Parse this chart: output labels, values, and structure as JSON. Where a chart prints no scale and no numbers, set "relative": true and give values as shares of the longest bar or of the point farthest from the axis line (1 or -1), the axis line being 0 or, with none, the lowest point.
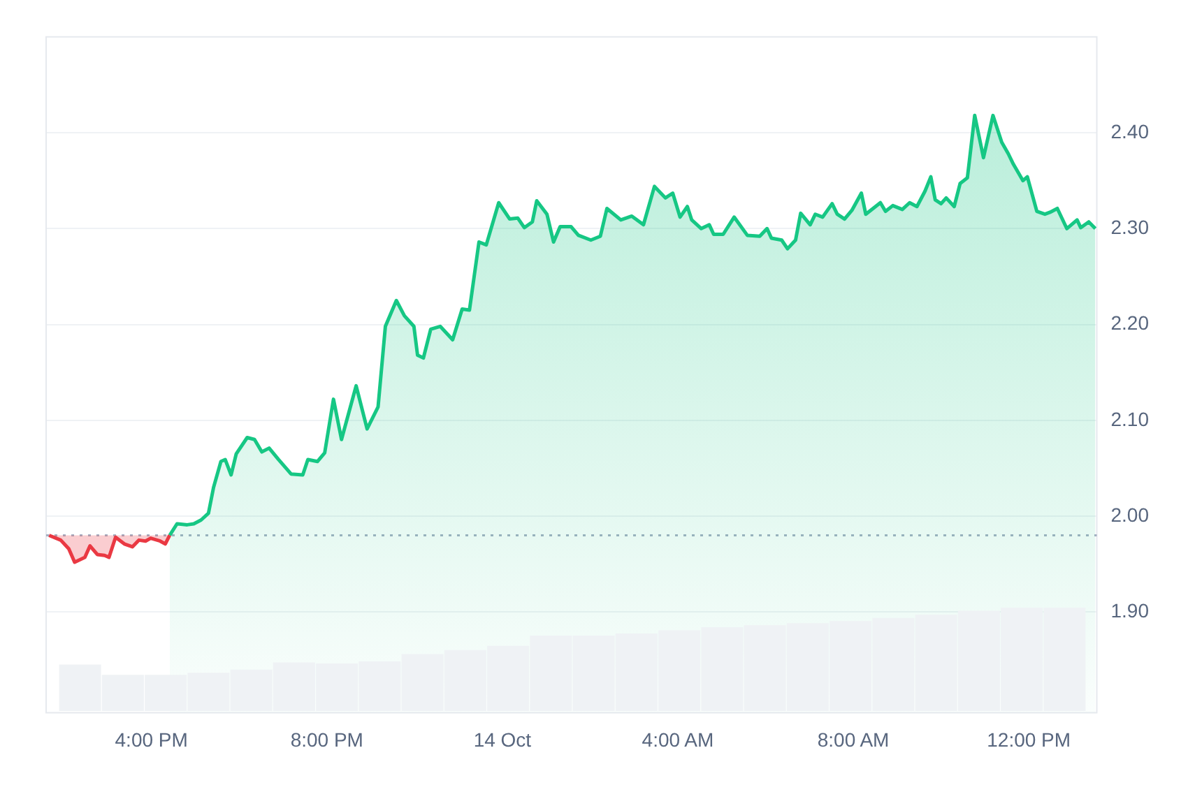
{
  "chart_data": [
    {
      "type": "area",
      "xlim": [
        "--10-13T13:36",
        "--10-14T13:33"
      ],
      "ylim": [
        1.795,
        2.5
      ],
      "xticks": [
        {
          "value": "--10-13T16:00",
          "label": "4:00 PM"
        },
        {
          "value": "--10-13T20:00",
          "label": "8:00 PM"
        },
        {
          "value": "--10-14T00:00",
          "label": "14 Oct"
        },
        {
          "value": "--10-14T04:00",
          "label": "4:00 AM"
        },
        {
          "value": "--10-14T08:00",
          "label": "8:00 AM"
        },
        {
          "value": "--10-14T12:00",
          "label": "12:00 PM"
        }
      ],
      "yticks": [
        {
          "value": 1.9,
          "label": "1.90"
        },
        {
          "value": 2.0,
          "label": "2.00"
        },
        {
          "value": 2.1,
          "label": "2.10"
        },
        {
          "value": 2.2,
          "label": "2.20"
        },
        {
          "value": 2.3,
          "label": "2.30"
        },
        {
          "value": 2.4,
          "label": "2.40"
        }
      ],
      "grid": "y",
      "marker": "none",
      "ref_lines": [
        {
          "axis": "y",
          "value": 1.98,
          "color": "#a6b0c3",
          "line_style": "dotted"
        }
      ],
      "series": [
        {
          "color": "#ea3943",
          "x": [
            "--10-13T13:40",
            "--10-13T13:56",
            "--10-13T14:07",
            "--10-13T14:15",
            "--10-13T14:29",
            "--10-13T14:36",
            "--10-13T14:46",
            "--10-13T14:56",
            "--10-13T15:02",
            "--10-13T15:11",
            "--10-13T15:23",
            "--10-13T15:34",
            "--10-13T15:43",
            "--10-13T15:52",
            "--10-13T15:59",
            "--10-13T16:12",
            "--10-13T16:19",
            "--10-13T16:25"
          ],
          "values": [
            1.98,
            1.975,
            1.966,
            1.952,
            1.957,
            1.969,
            1.96,
            1.959,
            1.957,
            1.978,
            1.971,
            1.968,
            1.975,
            1.974,
            1.977,
            1.974,
            1.971,
            1.98
          ]
        },
        {
          "color": "#16c784",
          "x": [
            "--10-13T16:25",
            "--10-13T16:35",
            "--10-13T16:49",
            "--10-13T16:58",
            "--10-13T17:08",
            "--10-13T17:18",
            "--10-13T17:25",
            "--10-13T17:35",
            "--10-13T17:41",
            "--10-13T17:49",
            "--10-13T17:56",
            "--10-13T18:11",
            "--10-13T18:21",
            "--10-13T18:31",
            "--10-13T18:41",
            "--10-13T18:54",
            "--10-13T19:11",
            "--10-13T19:27",
            "--10-13T19:34",
            "--10-13T19:47",
            "--10-13T19:57",
            "--10-13T20:09",
            "--10-13T20:20",
            "--10-13T20:40",
            "--10-13T20:55",
            "--10-13T21:10",
            "--10-13T21:20",
            "--10-13T21:35",
            "--10-13T21:46",
            "--10-13T21:59",
            "--10-13T22:04",
            "--10-13T22:12",
            "--10-13T22:22",
            "--10-13T22:35",
            "--10-13T22:52",
            "--10-13T23:05",
            "--10-13T23:15",
            "--10-13T23:28",
            "--10-13T23:38",
            "--10-13T23:55",
            "--10-14T00:10",
            "--10-14T00:21",
            "--10-14T00:30",
            "--10-14T00:41",
            "--10-14T00:47",
            "--10-14T01:01",
            "--10-14T01:10",
            "--10-14T01:19",
            "--10-14T01:34",
            "--10-14T01:44",
            "--10-14T02:01",
            "--10-14T02:14",
            "--10-14T02:23",
            "--10-14T02:42",
            "--10-14T02:57",
            "--10-14T03:13",
            "--10-14T03:28",
            "--10-14T03:43",
            "--10-14T03:53",
            "--10-14T04:03",
            "--10-14T04:13",
            "--10-14T04:19",
            "--10-14T04:32",
            "--10-14T04:43",
            "--10-14T04:49",
            "--10-14T05:02",
            "--10-14T05:17",
            "--10-14T05:35",
            "--10-14T05:52",
            "--10-14T06:02",
            "--10-14T06:08",
            "--10-14T06:22",
            "--10-14T06:30",
            "--10-14T06:41",
            "--10-14T06:48",
            "--10-14T07:01",
            "--10-14T07:08",
            "--10-14T07:18",
            "--10-14T07:31",
            "--10-14T07:38",
            "--10-14T07:48",
            "--10-14T07:58",
            "--10-14T08:11",
            "--10-14T08:17",
            "--10-14T08:37",
            "--10-14T08:44",
            "--10-14T08:54",
            "--10-14T09:07",
            "--10-14T09:17",
            "--10-14T09:27",
            "--10-14T09:38",
            "--10-14T09:46",
            "--10-14T09:52",
            "--10-14T10:00",
            "--10-14T10:07",
            "--10-14T10:18",
            "--10-14T10:26",
            "--10-14T10:36",
            "--10-14T10:46",
            "--10-14T10:58",
            "--10-14T11:11",
            "--10-14T11:23",
            "--10-14T11:32",
            "--10-14T11:39",
            "--10-14T11:52",
            "--10-14T11:58",
            "--10-14T12:11",
            "--10-14T12:22",
            "--10-14T12:29",
            "--10-14T12:39",
            "--10-14T12:52",
            "--10-14T13:06",
            "--10-14T13:11",
            "--10-14T13:22",
            "--10-14T13:31"
          ],
          "values": [
            1.98,
            1.992,
            1.991,
            1.992,
            1.996,
            2.003,
            2.03,
            2.057,
            2.059,
            2.043,
            2.065,
            2.082,
            2.08,
            2.067,
            2.071,
            2.059,
            2.044,
            2.043,
            2.059,
            2.057,
            2.066,
            2.122,
            2.08,
            2.136,
            2.091,
            2.114,
            2.198,
            2.225,
            2.209,
            2.198,
            2.168,
            2.165,
            2.195,
            2.198,
            2.184,
            2.216,
            2.215,
            2.286,
            2.283,
            2.327,
            2.31,
            2.311,
            2.301,
            2.307,
            2.329,
            2.315,
            2.286,
            2.302,
            2.302,
            2.293,
            2.288,
            2.292,
            2.321,
            2.309,
            2.313,
            2.304,
            2.344,
            2.332,
            2.337,
            2.312,
            2.323,
            2.309,
            2.3,
            2.304,
            2.294,
            2.294,
            2.312,
            2.293,
            2.292,
            2.3,
            2.29,
            2.288,
            2.279,
            2.288,
            2.316,
            2.304,
            2.315,
            2.312,
            2.326,
            2.315,
            2.31,
            2.319,
            2.337,
            2.315,
            2.327,
            2.318,
            2.324,
            2.32,
            2.327,
            2.323,
            2.339,
            2.354,
            2.33,
            2.326,
            2.332,
            2.323,
            2.347,
            2.353,
            2.418,
            2.374,
            2.418,
            2.39,
            2.378,
            2.367,
            2.35,
            2.354,
            2.318,
            2.315,
            2.317,
            2.321,
            2.3,
            2.309,
            2.301,
            2.307,
            2.3
          ]
        }
      ]
    },
    {
      "type": "bar",
      "relative": true,
      "color": "#eff2f5",
      "categories": [
        null,
        null,
        null,
        null,
        null,
        null,
        null,
        null,
        null,
        null,
        null,
        null,
        null,
        null,
        null,
        null,
        null,
        null,
        null,
        null,
        null,
        null,
        null,
        null
      ],
      "values": [
        0.45,
        0.35,
        0.35,
        0.37,
        0.4,
        0.47,
        0.46,
        0.48,
        0.55,
        0.59,
        0.63,
        0.73,
        0.73,
        0.75,
        0.78,
        0.81,
        0.83,
        0.85,
        0.87,
        0.9,
        0.93,
        0.97,
        1,
        1
      ]
    }
  ]
}
